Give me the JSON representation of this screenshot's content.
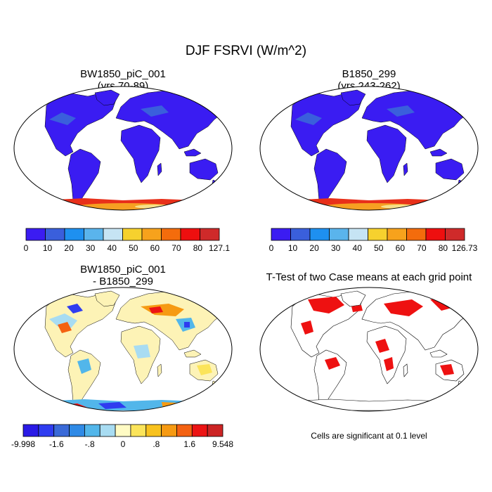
{
  "figure": {
    "title": "DJF FSRVI (W/m^2)",
    "footnote": "Cells are significant at 0.1 level"
  },
  "panels": [
    {
      "id": "case1",
      "title_line1": "BW1850_piC_001",
      "title_line2": "(yrs 70-89)"
    },
    {
      "id": "case2",
      "title_line1": "B1850_299",
      "title_line2": "(yrs 243-262)"
    },
    {
      "id": "diff",
      "title_line1": "BW1850_piC_001",
      "title_line2": "- B1850_299"
    },
    {
      "id": "ttest",
      "title_line1": "T-Test of two Case means at each grid point",
      "title_line2": ""
    }
  ],
  "colorbars": {
    "case1": {
      "labels": [
        "0",
        "10",
        "20",
        "30",
        "40",
        "50",
        "60",
        "70",
        "80",
        "127.1"
      ],
      "colors": [
        "#3b1cf2",
        "#3a5fdc",
        "#1e90f0",
        "#5ab4ec",
        "#c6e4f4",
        "#f6d12e",
        "#f7a21c",
        "#f46c0c",
        "#ee0f0f",
        "#cf2a2a"
      ]
    },
    "case2": {
      "labels": [
        "0",
        "10",
        "20",
        "30",
        "40",
        "50",
        "60",
        "70",
        "80",
        "126.73"
      ],
      "colors": [
        "#3b1cf2",
        "#3a5fdc",
        "#1e90f0",
        "#5ab4ec",
        "#c6e4f4",
        "#f6d12e",
        "#f7a21c",
        "#f46c0c",
        "#ee0f0f",
        "#cf2a2a"
      ]
    },
    "diff": {
      "labels": [
        "-9.998",
        "-1.6",
        "-.8",
        "0",
        ".8",
        "1.6",
        "9.548"
      ],
      "colors": [
        "#2a1ae6",
        "#2f3cf0",
        "#3a6ad8",
        "#2f8ae6",
        "#52b6ea",
        "#a8dcf2",
        "#fffbc4",
        "#fbe45a",
        "#f8c21e",
        "#f69a12",
        "#f46212",
        "#ec1414",
        "#cc2424"
      ]
    }
  },
  "legend_colors": {
    "case_land": "#3a1cf2",
    "ttest_sig": "#ee1111"
  }
}
